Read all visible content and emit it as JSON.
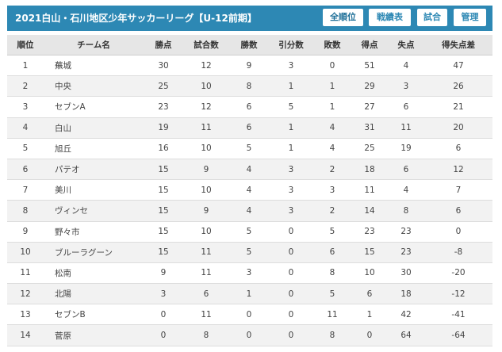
{
  "header": {
    "title": "2021白山・石川地区少年サッカーリーグ【U-12前期】",
    "buttons": [
      "全順位",
      "戦績表",
      "試合",
      "管理"
    ]
  },
  "table": {
    "columns": [
      "順位",
      "チーム名",
      "勝点",
      "試合数",
      "勝数",
      "引分数",
      "敗数",
      "得点",
      "失点",
      "得失点差"
    ],
    "rows": [
      [
        "1",
        "蕪城",
        "30",
        "12",
        "9",
        "3",
        "0",
        "51",
        "4",
        "47"
      ],
      [
        "2",
        "中央",
        "25",
        "10",
        "8",
        "1",
        "1",
        "29",
        "3",
        "26"
      ],
      [
        "3",
        "セブンA",
        "23",
        "12",
        "6",
        "5",
        "1",
        "27",
        "6",
        "21"
      ],
      [
        "4",
        "白山",
        "19",
        "11",
        "6",
        "1",
        "4",
        "31",
        "11",
        "20"
      ],
      [
        "5",
        "旭丘",
        "16",
        "10",
        "5",
        "1",
        "4",
        "25",
        "19",
        "6"
      ],
      [
        "6",
        "パテオ",
        "15",
        "9",
        "4",
        "3",
        "2",
        "18",
        "6",
        "12"
      ],
      [
        "7",
        "美川",
        "15",
        "10",
        "4",
        "3",
        "3",
        "11",
        "4",
        "7"
      ],
      [
        "8",
        "ヴィンセ",
        "15",
        "9",
        "4",
        "3",
        "2",
        "14",
        "8",
        "6"
      ],
      [
        "9",
        "野々市",
        "15",
        "10",
        "5",
        "0",
        "5",
        "23",
        "23",
        "0"
      ],
      [
        "10",
        "ブルーラグーン",
        "15",
        "11",
        "5",
        "0",
        "6",
        "15",
        "23",
        "-8"
      ],
      [
        "11",
        "松南",
        "9",
        "11",
        "3",
        "0",
        "8",
        "10",
        "30",
        "-20"
      ],
      [
        "12",
        "北陽",
        "3",
        "6",
        "1",
        "0",
        "5",
        "6",
        "18",
        "-12"
      ],
      [
        "13",
        "セブンB",
        "0",
        "11",
        "0",
        "0",
        "11",
        "1",
        "42",
        "-41"
      ],
      [
        "14",
        "菅原",
        "0",
        "8",
        "0",
        "0",
        "8",
        "0",
        "64",
        "-64"
      ]
    ]
  },
  "colors": {
    "header_bg": "#2d88b4",
    "header_text": "#ffffff",
    "table_head_bg": "#e6e6e6",
    "row_alt_bg": "#f2f2f2"
  }
}
